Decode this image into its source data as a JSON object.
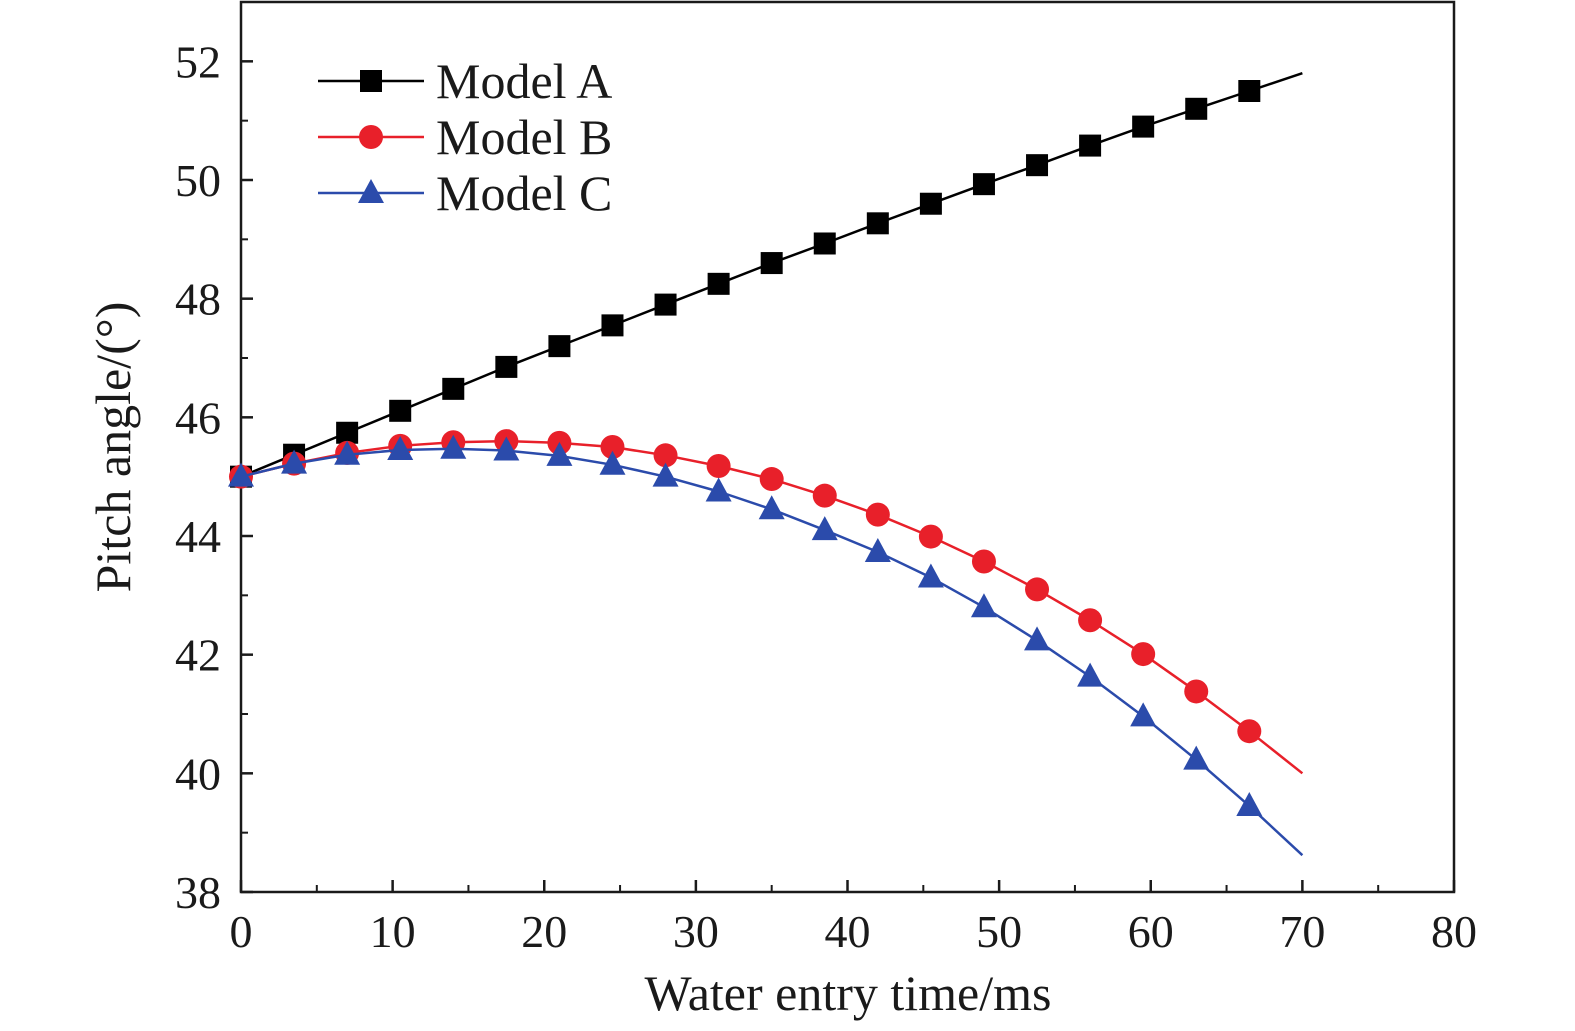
{
  "chart_data": {
    "type": "line",
    "title": "",
    "xlabel": "Water entry time/ms",
    "ylabel": "Pitch angle/(°)",
    "xlim": [
      0,
      80
    ],
    "ylim": [
      38,
      53
    ],
    "xticks": [
      "0",
      "10",
      "20",
      "30",
      "40",
      "50",
      "60",
      "70",
      "80"
    ],
    "yticks": [
      "38",
      "40",
      "42",
      "44",
      "46",
      "48",
      "50",
      "52"
    ],
    "grid": false,
    "legend_position": "top-left",
    "series": [
      {
        "name": "Model A",
        "color": "#000000",
        "marker": "square",
        "line_end": [
          70,
          51.8
        ],
        "x": [
          0,
          3.5,
          7,
          10.5,
          14,
          17.5,
          21,
          24.5,
          28,
          31.5,
          35,
          38.5,
          42,
          45.5,
          49,
          52.5,
          56,
          59.5,
          63,
          66.5
        ],
        "values": [
          45.0,
          45.37,
          45.74,
          46.11,
          46.48,
          46.85,
          47.2,
          47.55,
          47.9,
          48.25,
          48.6,
          48.93,
          49.27,
          49.6,
          49.93,
          50.25,
          50.58,
          50.9,
          51.2,
          51.5
        ]
      },
      {
        "name": "Model B",
        "color": "#e8202a",
        "marker": "circle",
        "line_end": [
          70,
          40.0
        ],
        "x": [
          0,
          3.5,
          7,
          10.5,
          14,
          17.5,
          21,
          24.5,
          28,
          31.5,
          35,
          38.5,
          42,
          45.5,
          49,
          52.5,
          56,
          59.5,
          63,
          66.5
        ],
        "values": [
          45.0,
          45.22,
          45.4,
          45.52,
          45.58,
          45.6,
          45.57,
          45.5,
          45.36,
          45.18,
          44.96,
          44.68,
          44.36,
          43.99,
          43.57,
          43.1,
          42.58,
          42.01,
          41.38,
          40.71
        ]
      },
      {
        "name": "Model C",
        "color": "#2b4bab",
        "marker": "triangle",
        "line_end": [
          70,
          38.62
        ],
        "x": [
          0,
          3.5,
          7,
          10.5,
          14,
          17.5,
          21,
          24.5,
          28,
          31.5,
          35,
          38.5,
          42,
          45.5,
          49,
          52.5,
          56,
          59.5,
          63,
          66.5
        ],
        "values": [
          45.0,
          45.22,
          45.37,
          45.45,
          45.47,
          45.44,
          45.35,
          45.2,
          45.0,
          44.75,
          44.45,
          44.1,
          43.73,
          43.3,
          42.8,
          42.24,
          41.63,
          40.96,
          40.23,
          39.45
        ]
      }
    ]
  }
}
